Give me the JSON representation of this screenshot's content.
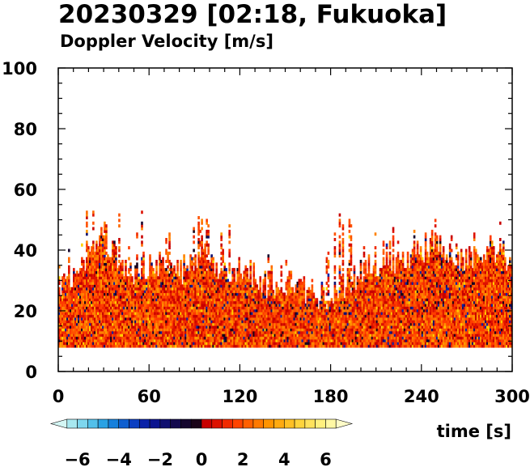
{
  "title": "20230329 [02:18, Fukuoka]",
  "subtitle": "Doppler Velocity [m/s]",
  "chart_data": {
    "type": "heatmap",
    "title": "20230329 [02:18, Fukuoka]",
    "subtitle": "Doppler Velocity [m/s]",
    "xlabel": "time [s]",
    "ylabel": "",
    "xlim": [
      0,
      300
    ],
    "ylim": [
      0,
      100
    ],
    "x_ticks": [
      "0",
      "60",
      "120",
      "180",
      "240",
      "300"
    ],
    "y_ticks": [
      "0",
      "20",
      "40",
      "60",
      "80",
      "100"
    ],
    "grid": false,
    "data_description_min_height": 8,
    "column_envelope": {
      "x_seconds": [
        0,
        10,
        20,
        25,
        30,
        40,
        47,
        55,
        65,
        75,
        85,
        95,
        105,
        115,
        125,
        135,
        145,
        155,
        165,
        175,
        185,
        195,
        205,
        215,
        225,
        235,
        245,
        255,
        265,
        275,
        285,
        295,
        300
      ],
      "typical_top": [
        28,
        32,
        38,
        44,
        40,
        36,
        30,
        34,
        36,
        32,
        34,
        38,
        30,
        34,
        32,
        28,
        30,
        28,
        26,
        24,
        28,
        30,
        34,
        36,
        34,
        38,
        42,
        40,
        36,
        38,
        40,
        38,
        32
      ],
      "max_top": [
        40,
        48,
        57,
        56,
        50,
        52,
        40,
        55,
        48,
        45,
        50,
        53,
        47,
        49,
        45,
        40,
        42,
        38,
        36,
        36,
        57,
        48,
        51,
        50,
        47,
        46,
        51,
        49,
        45,
        49,
        52,
        50,
        40
      ]
    },
    "colorbar": {
      "vmin": -7,
      "vmax": 7,
      "ticks": [
        "−6",
        "−4",
        "−2",
        "0",
        "2",
        "4",
        "6"
      ],
      "tick_values": [
        -6,
        -4,
        -2,
        0,
        2,
        4,
        6
      ],
      "colors_negative": [
        "#d4f6f4",
        "#a8e8f0",
        "#7dd6ee",
        "#52c0ea",
        "#2aa2e4",
        "#1680dc",
        "#0f5fd0",
        "#0b3fc2",
        "#0a22a8",
        "#0b1490",
        "#101070",
        "#140a4e",
        "#14062e",
        "#1a0418"
      ],
      "colors_positive": [
        "#c80000",
        "#dd1100",
        "#f02a00",
        "#ff4400",
        "#ff6000",
        "#ff7a00",
        "#ff9400",
        "#ffaa10",
        "#ffc024",
        "#ffd43c",
        "#ffe25c",
        "#fff07e",
        "#fff8a4",
        "#fffcc8"
      ]
    }
  }
}
